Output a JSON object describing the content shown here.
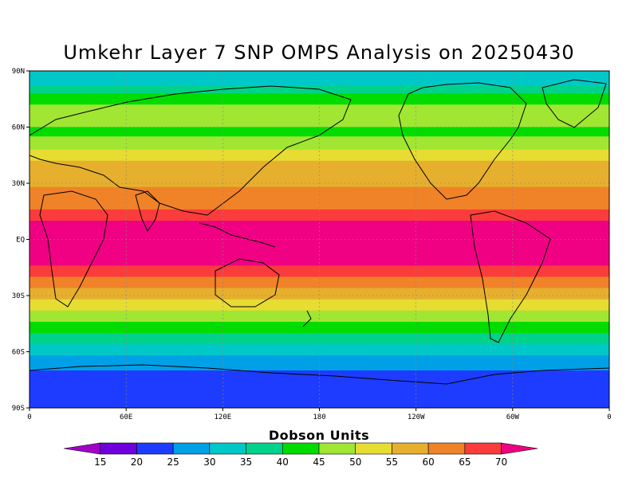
{
  "map": {
    "title": "Umkehr Layer 7 SNP OMPS Analysis on 20250430",
    "lat_labels": [
      "90N",
      "60N",
      "30N",
      "EQ",
      "30S",
      "60S",
      "90S"
    ],
    "lon_labels": [
      "0",
      "60E",
      "120E",
      "180",
      "120W",
      "60W",
      "0"
    ],
    "legend": {
      "title": "Dobson Units",
      "levels": [
        15,
        20,
        25,
        30,
        35,
        40,
        45,
        50,
        55,
        60,
        65,
        70
      ],
      "colors": [
        "#a000c8",
        "#6e00dc",
        "#1e3cff",
        "#00a0e6",
        "#00c8c8",
        "#00d28c",
        "#00dc00",
        "#a0e632",
        "#e6dc32",
        "#e6af2d",
        "#f08228",
        "#fa3c3c",
        "#f00082"
      ]
    },
    "bands": [
      {
        "lat": 90,
        "value": 30
      },
      {
        "lat": 85,
        "value": 30
      },
      {
        "lat": 82,
        "value": 35
      },
      {
        "lat": 78,
        "value": 40
      },
      {
        "lat": 72,
        "value": 45
      },
      {
        "lat": 66,
        "value": 45
      },
      {
        "lat": 60,
        "value": 40
      },
      {
        "lat": 55,
        "value": 45
      },
      {
        "lat": 48,
        "value": 50
      },
      {
        "lat": 42,
        "value": 55
      },
      {
        "lat": 35,
        "value": 55
      },
      {
        "lat": 28,
        "value": 60
      },
      {
        "lat": 22,
        "value": 60
      },
      {
        "lat": 16,
        "value": 65
      },
      {
        "lat": 10,
        "value": 70
      },
      {
        "lat": 0,
        "value": 70
      },
      {
        "lat": -8,
        "value": 70
      },
      {
        "lat": -14,
        "value": 65
      },
      {
        "lat": -20,
        "value": 60
      },
      {
        "lat": -26,
        "value": 55
      },
      {
        "lat": -32,
        "value": 50
      },
      {
        "lat": -38,
        "value": 45
      },
      {
        "lat": -44,
        "value": 40
      },
      {
        "lat": -50,
        "value": 35
      },
      {
        "lat": -56,
        "value": 30
      },
      {
        "lat": -62,
        "value": 25
      },
      {
        "lat": -70,
        "value": 20
      },
      {
        "lat": -90,
        "value": 20
      }
    ]
  }
}
